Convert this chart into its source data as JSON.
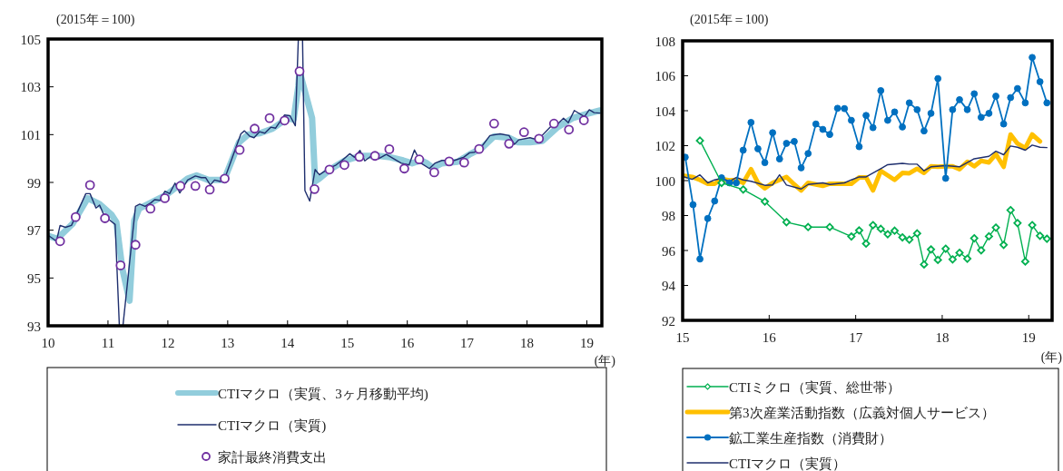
{
  "chart_data": [
    {
      "type": "line",
      "xlim": [
        10,
        19.25
      ],
      "xticks": [
        10,
        11,
        12,
        13,
        14,
        15,
        16,
        17,
        18,
        19
      ],
      "ylim": [
        93,
        105
      ],
      "yticks": [
        93,
        95,
        97,
        99,
        101,
        103,
        105
      ],
      "legend": "bottom",
      "annotations": [
        "(2015年＝100)",
        "(年)"
      ],
      "series": [
        {
          "name": "CTIマクロ（実質、3ヶ月移動平均)",
          "color": "#92cddc",
          "type": "line",
          "x": [
            10.01,
            10.15,
            10.41,
            10.66,
            10.86,
            11.06,
            11.14,
            11.24,
            11.36,
            11.44,
            11.52,
            11.67,
            11.97,
            12.33,
            12.48,
            12.68,
            12.94,
            13.19,
            13.34,
            13.54,
            13.75,
            14.0,
            14.1,
            14.18,
            14.2,
            14.41,
            14.46,
            14.53,
            14.71,
            14.96,
            15.22,
            15.52,
            15.72,
            15.93,
            16.08,
            16.23,
            16.33,
            16.43,
            16.58,
            16.84,
            17.04,
            17.24,
            17.45,
            17.7,
            17.85,
            18.05,
            18.26,
            18.51,
            18.76,
            19.02,
            19.22
          ],
          "values": [
            96.76,
            96.64,
            97.27,
            98.34,
            98.09,
            97.65,
            97.33,
            95.38,
            94.05,
            97.4,
            97.9,
            98.09,
            98.47,
            99.16,
            99.29,
            99.1,
            99.1,
            100.68,
            101.0,
            101.06,
            101.25,
            101.69,
            101.63,
            103.02,
            103.65,
            101.69,
            99.04,
            99.16,
            99.54,
            99.92,
            100.11,
            100.11,
            100.05,
            99.92,
            99.8,
            99.92,
            99.8,
            99.61,
            99.8,
            99.86,
            100.17,
            100.43,
            100.93,
            100.87,
            100.68,
            100.68,
            100.74,
            101.31,
            101.69,
            101.88,
            102.01
          ]
        },
        {
          "name": "CTIマクロ（実質)",
          "color": "#1f2f6e",
          "type": "line",
          "x": [
            10.0,
            10.14,
            10.2,
            10.29,
            10.39,
            10.63,
            10.7,
            10.8,
            10.86,
            10.94,
            11.01,
            11.12,
            11.19,
            11.25,
            11.46,
            11.53,
            11.62,
            11.72,
            11.78,
            11.87,
            11.95,
            12.03,
            12.12,
            12.2,
            12.33,
            12.46,
            12.56,
            12.63,
            12.71,
            12.78,
            12.88,
            12.96,
            13.22,
            13.28,
            13.37,
            13.44,
            13.53,
            13.62,
            13.72,
            13.8,
            13.95,
            14.04,
            14.13,
            14.18,
            14.25,
            14.29,
            14.37,
            14.46,
            14.53,
            14.7,
            14.81,
            14.91,
            15.04,
            15.12,
            15.21,
            15.29,
            15.42,
            15.52,
            15.65,
            15.9,
            16.03,
            16.12,
            16.23,
            16.37,
            16.46,
            16.58,
            16.79,
            16.94,
            17.04,
            17.12,
            17.24,
            17.38,
            17.55,
            17.7,
            17.79,
            17.86,
            18.05,
            18.18,
            18.41,
            18.51,
            18.61,
            18.69,
            18.79,
            18.96,
            19.04,
            19.12,
            19.22
          ],
          "values": [
            96.79,
            96.54,
            97.2,
            97.12,
            97.2,
            98.53,
            98.53,
            97.93,
            98.05,
            97.59,
            97.46,
            97.24,
            93,
            93,
            98.0,
            98.09,
            98.0,
            98.15,
            98.28,
            98.25,
            98.63,
            98.53,
            98.97,
            98.56,
            99.1,
            99.27,
            99.2,
            99.2,
            98.89,
            99.1,
            99.04,
            99.23,
            101.03,
            101.16,
            100.93,
            100.87,
            101.12,
            101.06,
            101.31,
            101.27,
            101.82,
            101.79,
            101.37,
            105,
            105,
            98.66,
            98.22,
            99.54,
            99.32,
            99.6,
            99.73,
            99.92,
            100.2,
            100.05,
            100.34,
            99.9,
            100.15,
            99.99,
            100.17,
            99.8,
            99.73,
            100.36,
            99.8,
            99.58,
            99.8,
            99.92,
            99.92,
            100.05,
            100.24,
            100.26,
            100.49,
            100.96,
            101.03,
            100.96,
            100.59,
            100.78,
            100.87,
            100.78,
            101.37,
            101.44,
            101.69,
            101.5,
            102.01,
            101.75,
            102.04,
            101.92,
            101.9
          ]
        },
        {
          "name": "家計最終消費支出",
          "color": "#7030a0",
          "type": "scatter",
          "marker": "circle",
          "x": [
            10.2,
            10.46,
            10.7,
            10.95,
            11.21,
            11.46,
            11.71,
            11.95,
            12.21,
            12.46,
            12.7,
            12.95,
            13.2,
            13.45,
            13.7,
            13.95,
            14.2,
            14.45,
            14.7,
            14.95,
            15.2,
            15.46,
            15.7,
            15.95,
            16.2,
            16.45,
            16.7,
            16.95,
            17.2,
            17.45,
            17.7,
            17.95,
            18.2,
            18.45,
            18.7,
            18.95
          ],
          "values": [
            96.54,
            97.55,
            98.89,
            97.5,
            95.53,
            96.39,
            97.9,
            98.34,
            98.85,
            98.85,
            98.7,
            99.16,
            100.36,
            101.25,
            101.69,
            101.59,
            103.65,
            98.72,
            99.54,
            99.73,
            100.07,
            100.11,
            100.39,
            99.58,
            99.96,
            99.42,
            99.88,
            99.83,
            100.4,
            101.46,
            100.62,
            101.1,
            100.83,
            101.46,
            101.21,
            101.6
          ]
        }
      ]
    },
    {
      "type": "line",
      "xlim": [
        15,
        19.27
      ],
      "xticks": [
        15,
        16,
        17,
        18,
        19
      ],
      "ylim": [
        92,
        108
      ],
      "yticks": [
        92,
        94,
        96,
        98,
        100,
        102,
        104,
        106,
        108
      ],
      "legend": "bottom",
      "annotations": [
        "(2015年＝100)",
        "(年)"
      ],
      "series": [
        {
          "name": "CTIミクロ（実質、総世帯）",
          "color": "#00b050",
          "type": "line",
          "marker": "diamond",
          "x": [
            15.2,
            15.45,
            15.7,
            15.95,
            16.2,
            16.45,
            16.7,
            16.95,
            17.04,
            17.12,
            17.2,
            17.29,
            17.37,
            17.45,
            17.54,
            17.62,
            17.71,
            17.79,
            17.87,
            17.95,
            18.04,
            18.12,
            18.2,
            18.29,
            18.37,
            18.45,
            18.54,
            18.62,
            18.71,
            18.79,
            18.87,
            18.96,
            19.04,
            19.13,
            19.21
          ],
          "values": [
            102.29,
            99.87,
            99.49,
            98.8,
            97.62,
            97.34,
            97.34,
            96.8,
            97.15,
            96.39,
            97.45,
            97.24,
            96.93,
            97.13,
            96.75,
            96.62,
            96.98,
            95.2,
            96.06,
            95.46,
            96.1,
            95.49,
            95.87,
            95.53,
            96.7,
            96.01,
            96.81,
            97.31,
            96.32,
            98.31,
            97.57,
            95.37,
            97.45,
            96.84,
            96.67
          ]
        },
        {
          "name": "第3次産業活動指数（広義対個人サービス）",
          "color": "#ffc000",
          "type": "line",
          "x": [
            15.02,
            15.11,
            15.2,
            15.29,
            15.37,
            15.45,
            15.54,
            15.62,
            15.7,
            15.79,
            15.87,
            15.95,
            16.04,
            16.12,
            16.2,
            16.29,
            16.37,
            16.45,
            16.54,
            16.62,
            16.7,
            16.79,
            16.87,
            16.95,
            17.04,
            17.12,
            17.2,
            17.29,
            17.37,
            17.45,
            17.54,
            17.62,
            17.71,
            17.79,
            17.87,
            17.95,
            18.04,
            18.12,
            18.2,
            18.29,
            18.37,
            18.45,
            18.54,
            18.62,
            18.71,
            18.79,
            18.87,
            18.96,
            19.04,
            19.13
          ],
          "values": [
            100.27,
            100.21,
            100.04,
            99.82,
            99.82,
            100.09,
            100.01,
            100.04,
            99.87,
            100.65,
            99.87,
            99.56,
            99.87,
            100.04,
            100.21,
            99.78,
            99.44,
            99.87,
            99.78,
            99.7,
            99.82,
            99.82,
            99.82,
            99.82,
            100.18,
            100.18,
            99.44,
            100.56,
            100.3,
            100.04,
            100.44,
            100.42,
            100.68,
            100.44,
            100.82,
            100.79,
            100.82,
            100.82,
            100.65,
            101.08,
            100.82,
            101.13,
            101.04,
            101.51,
            100.79,
            102.64,
            102.12,
            101.86,
            102.64,
            102.24
          ]
        },
        {
          "name": "鉱工業生産指数（消費財）",
          "color": "#0070c0",
          "type": "line",
          "marker": "circle",
          "x": [
            15.03,
            15.12,
            15.2,
            15.29,
            15.37,
            15.45,
            15.54,
            15.62,
            15.7,
            15.79,
            15.87,
            15.95,
            16.04,
            16.12,
            16.2,
            16.29,
            16.37,
            16.45,
            16.54,
            16.62,
            16.7,
            16.79,
            16.87,
            16.95,
            17.04,
            17.12,
            17.2,
            17.29,
            17.37,
            17.45,
            17.54,
            17.62,
            17.71,
            17.79,
            17.87,
            17.95,
            18.04,
            18.12,
            18.2,
            18.29,
            18.37,
            18.45,
            18.54,
            18.62,
            18.71,
            18.79,
            18.87,
            18.96,
            19.04,
            19.13,
            19.21
          ],
          "values": [
            101.34,
            98.62,
            95.51,
            97.83,
            98.83,
            100.16,
            99.87,
            99.87,
            101.74,
            103.33,
            101.82,
            101.03,
            102.74,
            101.24,
            102.13,
            102.24,
            100.73,
            101.55,
            103.24,
            102.93,
            102.64,
            104.14,
            104.12,
            103.45,
            101.94,
            103.73,
            103.03,
            105.15,
            103.45,
            103.93,
            103.07,
            104.45,
            104.06,
            102.84,
            103.85,
            105.84,
            100.13,
            104.06,
            104.63,
            104.06,
            104.97,
            103.62,
            103.85,
            104.83,
            103.24,
            104.75,
            105.27,
            104.45,
            107.05,
            105.66,
            104.45
          ]
        },
        {
          "name": "CTIマクロ（実質）",
          "color": "#1f2f6e",
          "type": "line",
          "x": [
            15.02,
            15.11,
            15.2,
            15.29,
            15.37,
            15.45,
            15.54,
            15.62,
            15.7,
            15.79,
            15.95,
            16.04,
            16.12,
            16.2,
            16.37,
            16.45,
            16.62,
            16.7,
            16.87,
            16.95,
            17.04,
            17.12,
            17.29,
            17.37,
            17.54,
            17.62,
            17.71,
            17.79,
            17.87,
            18.04,
            18.2,
            18.29,
            18.37,
            18.54,
            18.62,
            18.71,
            18.79,
            18.87,
            18.96,
            19.04,
            19.13,
            19.21
          ],
          "values": [
            100.21,
            100.07,
            100.33,
            99.87,
            100.04,
            100.13,
            99.96,
            100.18,
            100.04,
            99.96,
            99.73,
            99.75,
            100.33,
            99.75,
            99.52,
            99.78,
            99.87,
            99.78,
            99.87,
            100.04,
            100.21,
            100.21,
            100.68,
            100.91,
            100.99,
            100.94,
            100.94,
            100.56,
            100.79,
            100.86,
            100.79,
            101.03,
            101.25,
            101.39,
            101.68,
            101.48,
            101.98,
            101.91,
            101.74,
            102.03,
            101.91,
            101.89
          ]
        }
      ]
    }
  ]
}
